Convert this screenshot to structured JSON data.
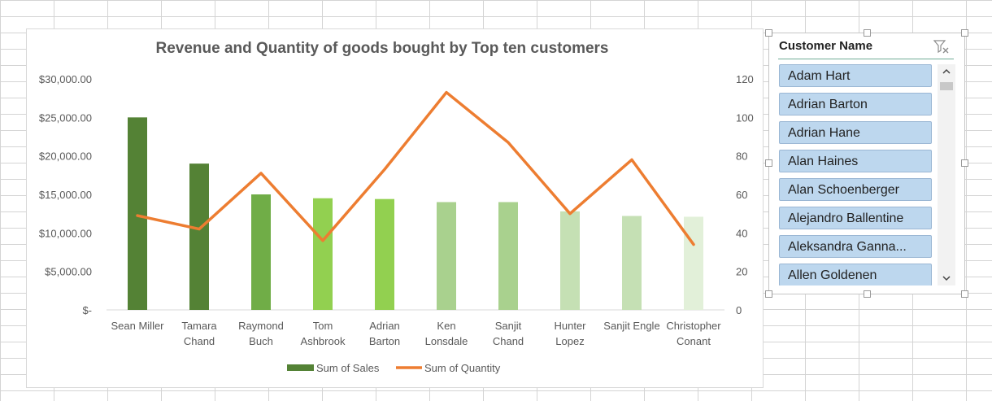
{
  "chart_data": {
    "type": "bar",
    "title": "Revenue and Quantity of goods bought by Top ten customers",
    "categories": [
      [
        "Sean Miller"
      ],
      [
        "Tamara",
        "Chand"
      ],
      [
        "Raymond",
        "Buch"
      ],
      [
        "Tom",
        "Ashbrook"
      ],
      [
        "Adrian",
        "Barton"
      ],
      [
        "Ken",
        "Lonsdale"
      ],
      [
        "Sanjit",
        "Chand"
      ],
      [
        "Hunter",
        "Lopez"
      ],
      [
        "Sanjit Engle"
      ],
      [
        "Christopher",
        "Conant"
      ]
    ],
    "series": [
      {
        "name": "Sum of Sales",
        "type": "bar",
        "axis": "left",
        "values": [
          25000,
          19000,
          15000,
          14500,
          14400,
          14000,
          14000,
          12800,
          12200,
          12100
        ],
        "colors": [
          "#548235",
          "#548235",
          "#70ad47",
          "#92d050",
          "#92d050",
          "#a9d18e",
          "#a9d18e",
          "#c5e0b4",
          "#c5e0b4",
          "#e2f0d9"
        ]
      },
      {
        "name": "Sum of Quantity",
        "type": "line",
        "axis": "right",
        "values": [
          49,
          42,
          71,
          36,
          73,
          113,
          87,
          50,
          78,
          34
        ],
        "color": "#ed7d31"
      }
    ],
    "y_left": {
      "min": 0,
      "max": 30000,
      "ticks": [
        "$-",
        "$5,000.00",
        "$10,000.00",
        "$15,000.00",
        "$20,000.00",
        "$25,000.00",
        "$30,000.00"
      ]
    },
    "y_right": {
      "min": 0,
      "max": 120,
      "ticks": [
        "0",
        "20",
        "40",
        "60",
        "80",
        "100",
        "120"
      ]
    },
    "legend_position": "bottom",
    "grid": false
  },
  "slicer": {
    "title": "Customer Name",
    "items": [
      "Adam Hart",
      "Adrian Barton",
      "Adrian Hane",
      "Alan Haines",
      "Alan Schoenberger",
      "Alejandro Ballentine",
      "Aleksandra Ganna...",
      "Allen Goldenen"
    ],
    "item_color": "#bdd7ee",
    "icons": {
      "clear_filter": "clear-filter-icon",
      "scroll_up": "chevron-up-icon",
      "scroll_down": "chevron-down-icon"
    }
  }
}
